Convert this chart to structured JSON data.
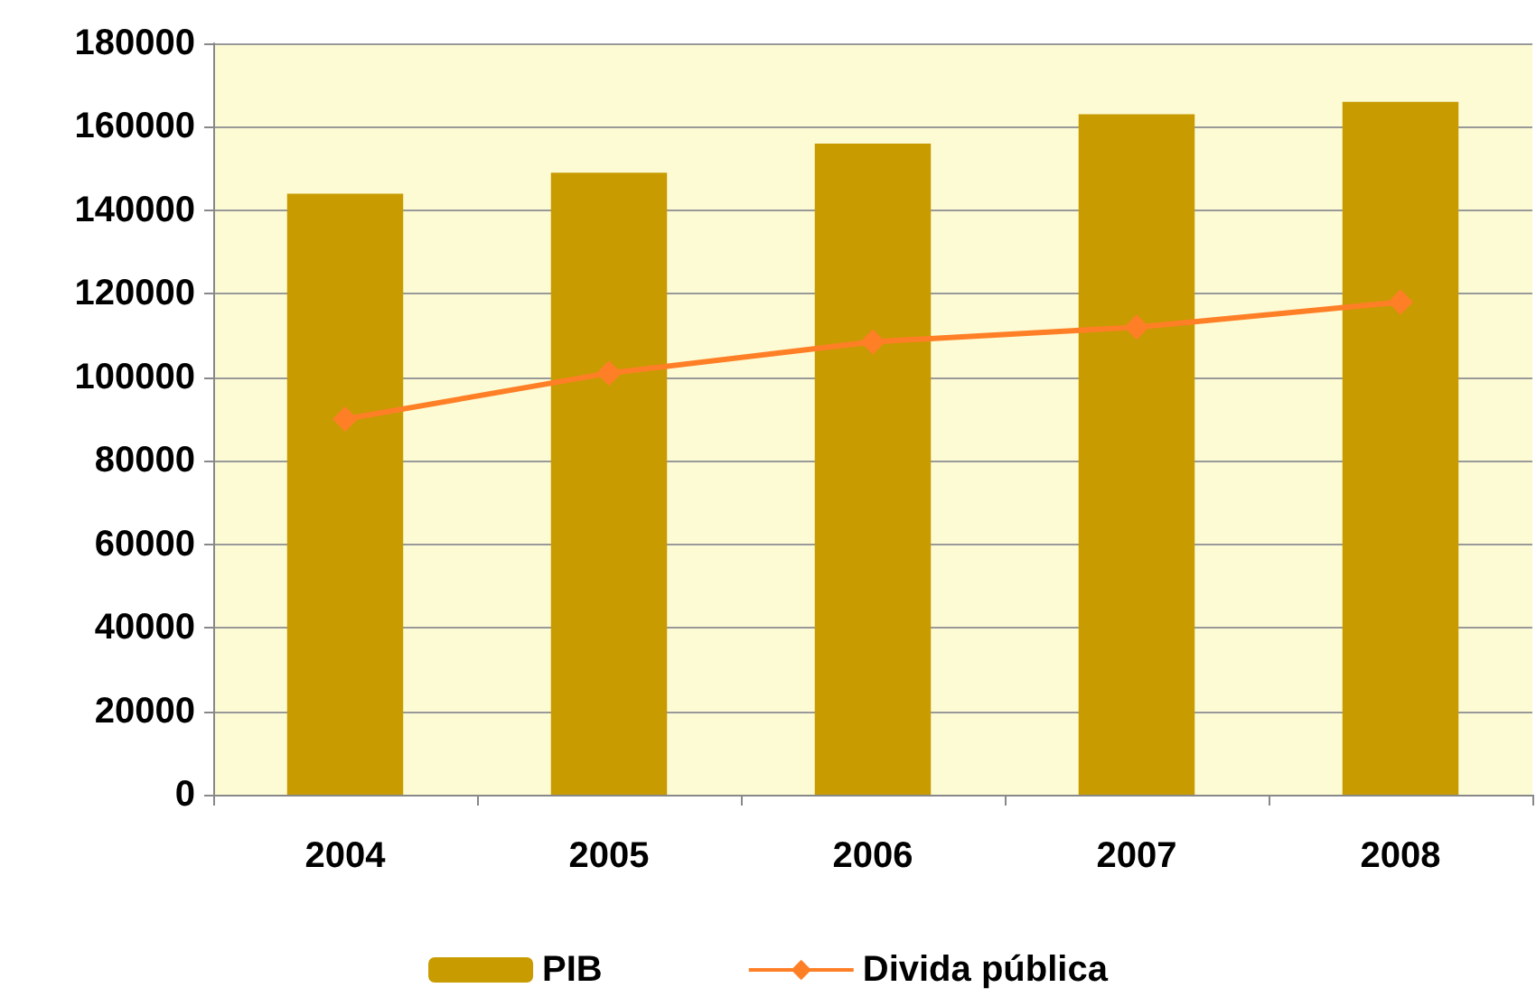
{
  "chart_data": {
    "type": "bar",
    "categories": [
      "2004",
      "2005",
      "2006",
      "2007",
      "2008"
    ],
    "series": [
      {
        "name": "PIB",
        "color": "#c89b00",
        "values": [
          144000,
          149000,
          156000,
          163000,
          166000
        ]
      },
      {
        "name": "Divida pública",
        "type": "line",
        "color": "#ff7f27",
        "marker": "diamond",
        "values": [
          90000,
          101000,
          108500,
          112000,
          118000
        ]
      }
    ],
    "ylim": [
      0,
      180000
    ],
    "yticks": [
      0,
      20000,
      40000,
      60000,
      80000,
      100000,
      120000,
      140000,
      160000,
      180000
    ],
    "grid": "y",
    "legend": "bottom"
  }
}
